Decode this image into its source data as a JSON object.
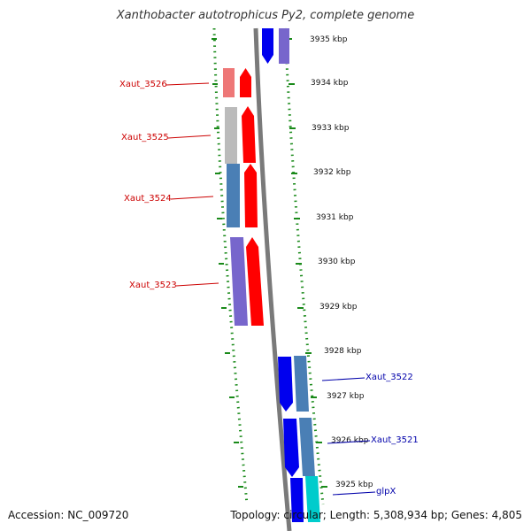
{
  "title": "Xanthobacter autotrophicus Py2, complete genome",
  "footer": {
    "accession": "Accession: NC_009720",
    "summary": "Topology: circular; Length: 5,308,934 bp; Genes: 4,805"
  },
  "colors": {
    "forward_label": "#cc0000",
    "reverse_label": "#0000aa",
    "backbone": "#7a7a7a",
    "ruler_dots": "#1a8a1a"
  },
  "scale": {
    "unit": "kbp",
    "ticks": [
      "3935 kbp",
      "3934 kbp",
      "3933 kbp",
      "3932 kbp",
      "3931 kbp",
      "3930 kbp",
      "3929 kbp",
      "3928 kbp",
      "3927 kbp",
      "3926 kbp",
      "3925 kbp"
    ]
  },
  "gene_labels": [
    {
      "id": "Xaut_3526",
      "strand": "forward"
    },
    {
      "id": "Xaut_3525",
      "strand": "forward"
    },
    {
      "id": "Xaut_3524",
      "strand": "forward"
    },
    {
      "id": "Xaut_3523",
      "strand": "forward"
    },
    {
      "id": "Xaut_3522",
      "strand": "reverse"
    },
    {
      "id": "Xaut_3521",
      "strand": "reverse"
    },
    {
      "id": "glpX",
      "strand": "reverse"
    }
  ]
}
